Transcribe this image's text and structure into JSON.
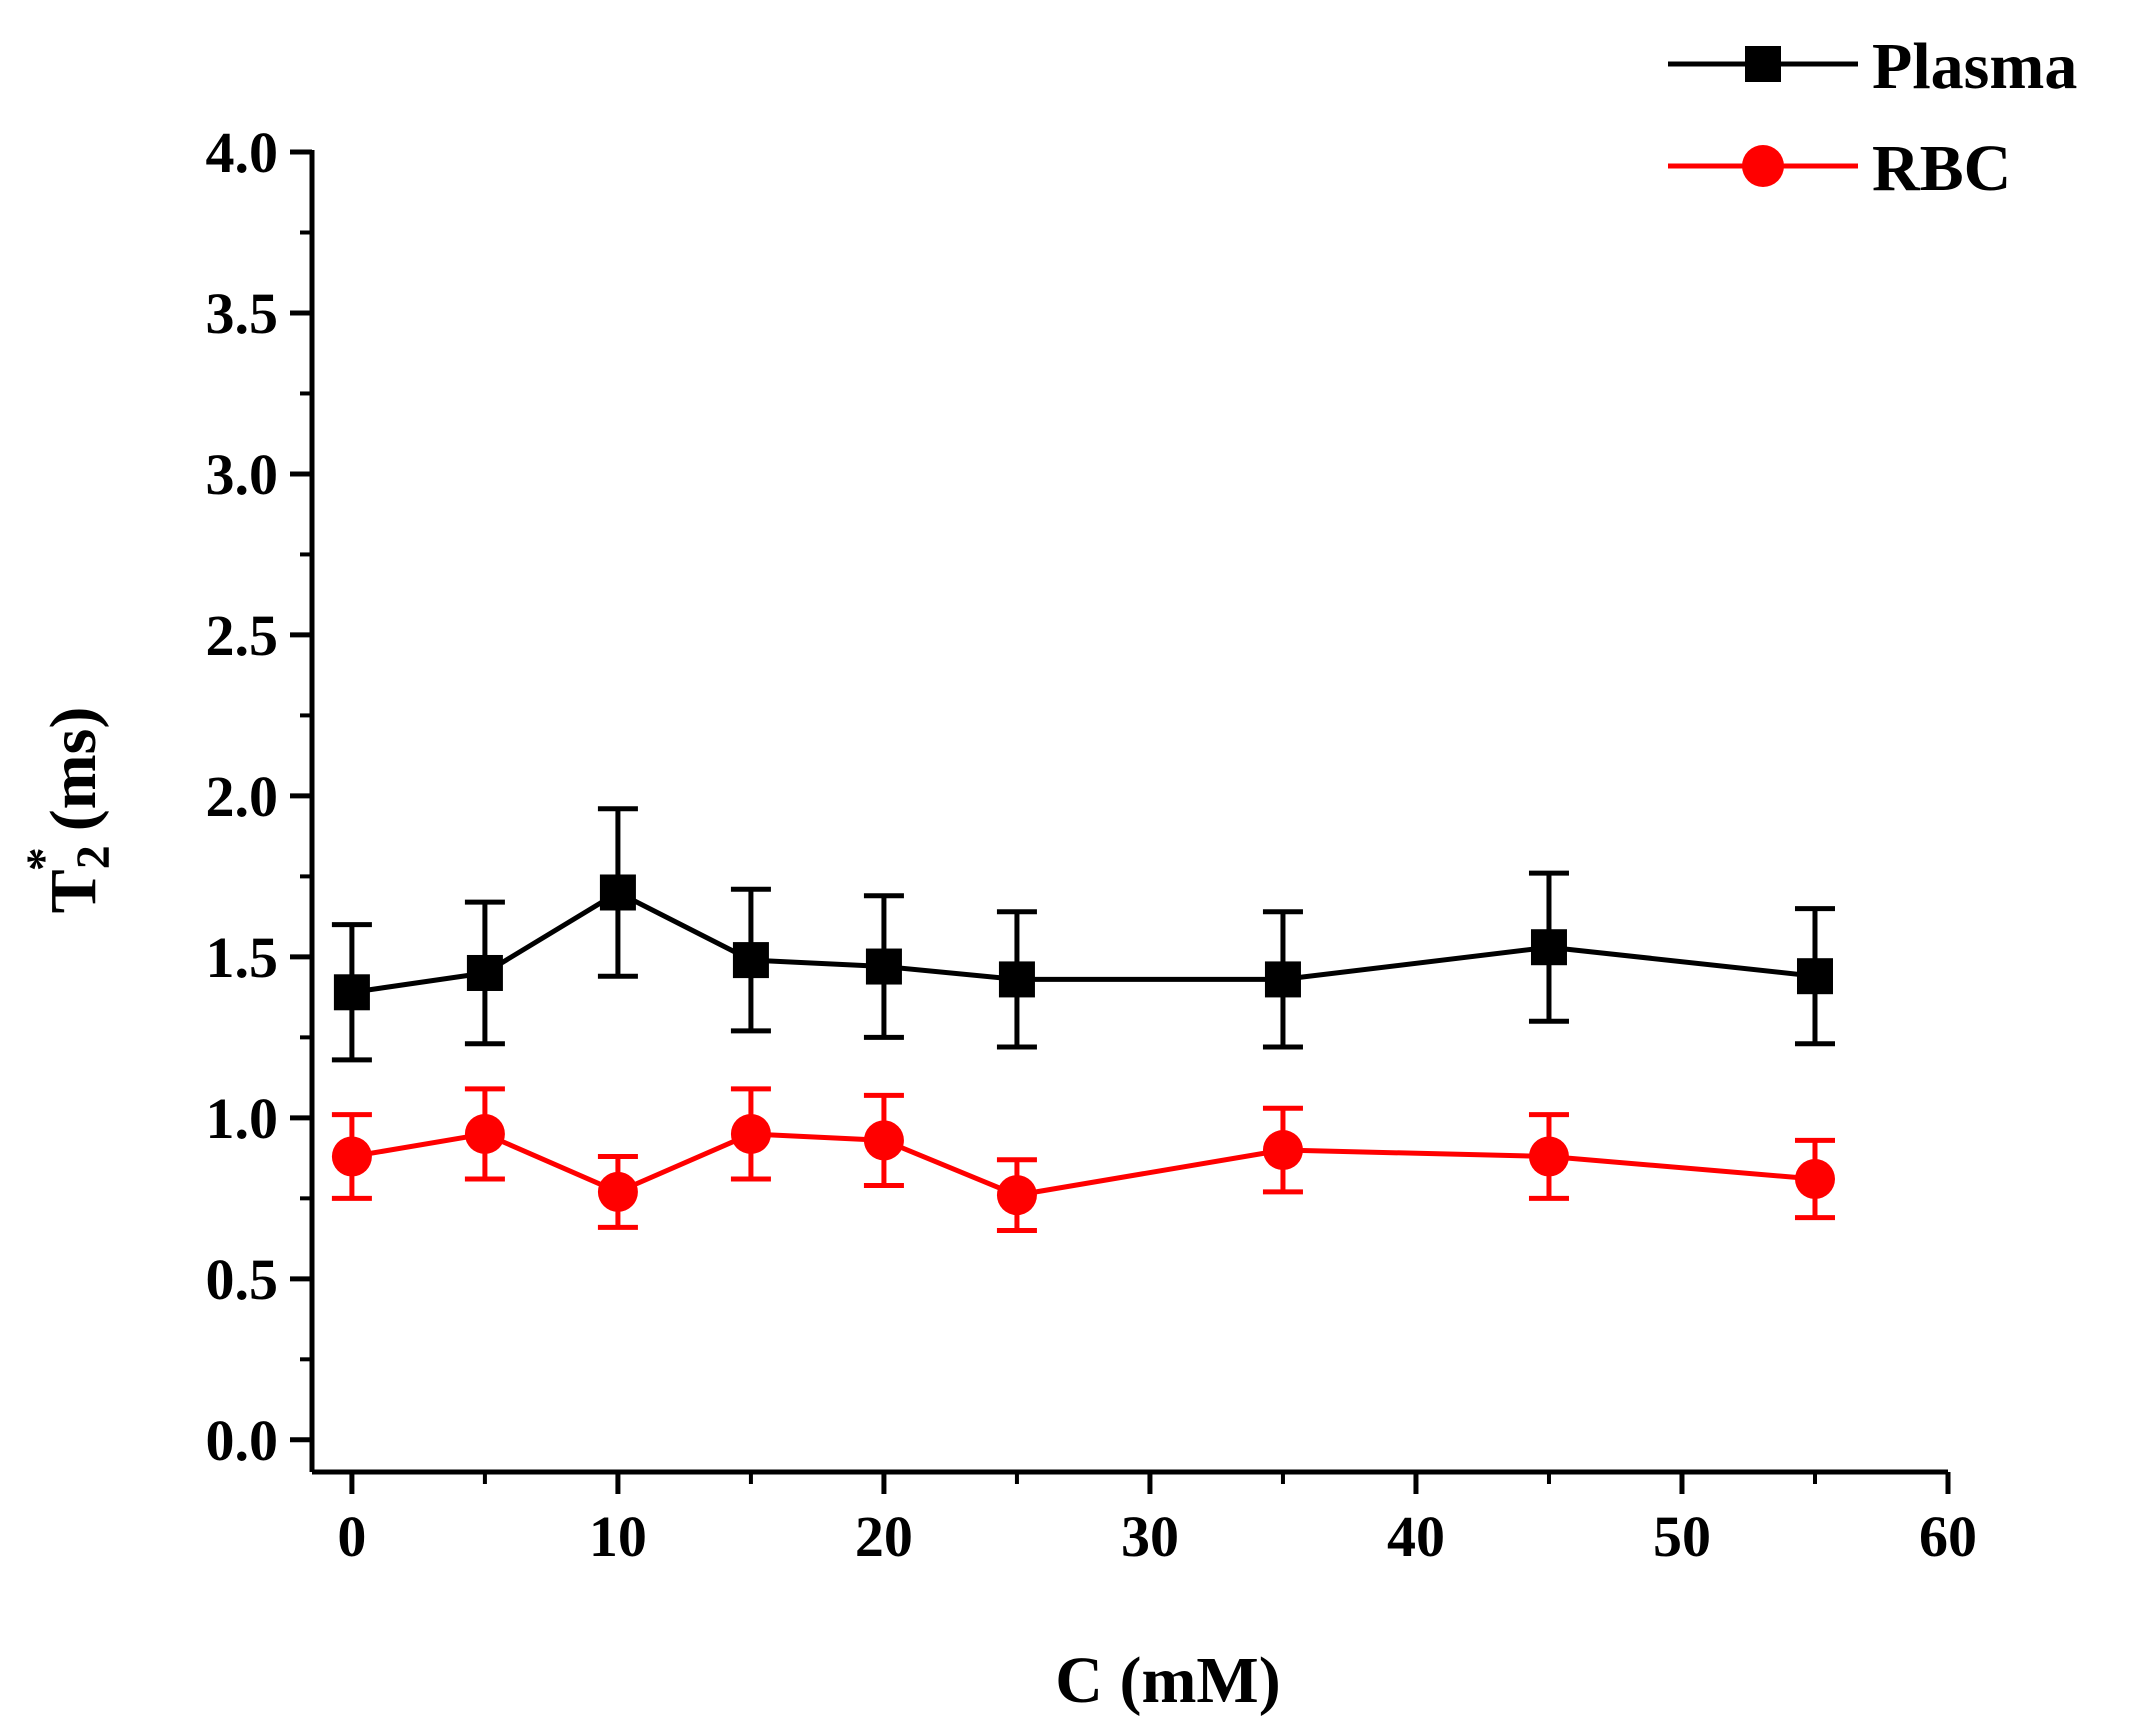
{
  "chart_data": {
    "type": "line",
    "title": "",
    "xlabel": "C (mM)",
    "ylabel": {
      "main": "T",
      "superscript": "*",
      "subscript": "2",
      "unit": "(ms)"
    },
    "xlim": [
      -1.5,
      60
    ],
    "ylim": [
      -0.1,
      4.0
    ],
    "xticks": [
      0,
      10,
      20,
      30,
      40,
      50,
      60
    ],
    "xtick_labels": [
      "0",
      "10",
      "20",
      "30",
      "40",
      "50",
      "60"
    ],
    "yticks": [
      0.0,
      0.5,
      1.0,
      1.5,
      2.0,
      2.5,
      3.0,
      3.5,
      4.0
    ],
    "ytick_labels": [
      "0.0",
      "0.5",
      "1.0",
      "1.5",
      "2.0",
      "2.5",
      "3.0",
      "3.5",
      "4.0"
    ],
    "grid": false,
    "legend_position": "top-right",
    "x": [
      0,
      5,
      10,
      15,
      20,
      25,
      35,
      45,
      55
    ],
    "series": [
      {
        "name": "Plasma",
        "color": "#000000",
        "marker": "square",
        "values": [
          1.39,
          1.45,
          1.7,
          1.49,
          1.47,
          1.43,
          1.43,
          1.53,
          1.44
        ],
        "errors": [
          0.21,
          0.22,
          0.26,
          0.22,
          0.22,
          0.21,
          0.21,
          0.23,
          0.21
        ]
      },
      {
        "name": "RBC",
        "color": "#ff0000",
        "marker": "circle",
        "values": [
          0.88,
          0.95,
          0.77,
          0.95,
          0.93,
          0.76,
          0.9,
          0.88,
          0.81
        ],
        "errors": [
          0.13,
          0.14,
          0.11,
          0.14,
          0.14,
          0.11,
          0.13,
          0.13,
          0.12
        ]
      }
    ]
  }
}
